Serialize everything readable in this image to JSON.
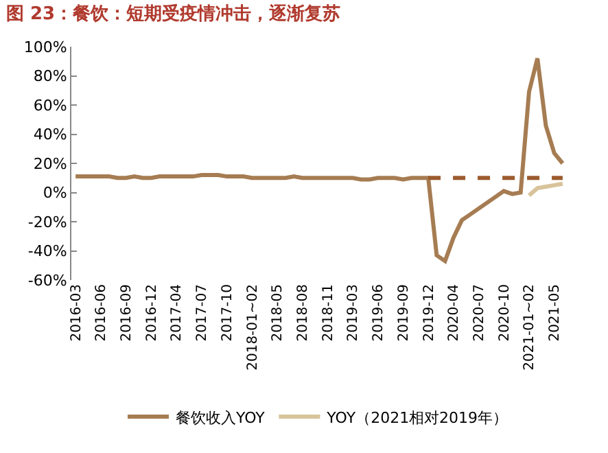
{
  "chart_data": {
    "type": "line",
    "title": "图 23：餐饮：短期受疫情冲击，逐渐复苏",
    "categories": [
      "2016-03",
      null,
      null,
      "2016-06",
      null,
      null,
      "2016-09",
      null,
      null,
      "2016-12",
      null,
      null,
      "2017-04",
      null,
      null,
      "2017-07",
      null,
      null,
      "2017-10",
      null,
      null,
      "2018-01~02",
      null,
      null,
      "2018-05",
      null,
      null,
      "2018-08",
      null,
      null,
      "2018-11",
      null,
      null,
      "2019-03",
      null,
      null,
      "2019-06",
      null,
      null,
      "2019-09",
      null,
      null,
      "2019-12",
      null,
      null,
      "2020-04",
      null,
      null,
      "2020-07",
      null,
      null,
      "2020-10",
      null,
      null,
      "2021-01~02",
      null,
      null,
      "2021-05",
      null
    ],
    "series": [
      {
        "name": "餐饮收入YOY",
        "color": "#a67c52",
        "values": [
          11,
          11,
          11,
          11,
          11,
          10,
          10,
          11,
          10,
          10,
          11,
          11,
          11,
          11,
          11,
          12,
          12,
          12,
          11,
          11,
          11,
          10,
          10,
          10,
          10,
          10,
          11,
          10,
          10,
          10,
          10,
          10,
          10,
          10,
          9,
          9,
          10,
          10,
          10,
          9,
          10,
          10,
          10,
          -43,
          -47,
          -31,
          -19,
          -15,
          -11,
          -7,
          -3,
          1,
          -1,
          0,
          69,
          92,
          46,
          27,
          20
        ]
      },
      {
        "name": "YOY（2021相对2019年）",
        "color": "#d8c39a",
        "values": [
          null,
          null,
          null,
          null,
          null,
          null,
          null,
          null,
          null,
          null,
          null,
          null,
          null,
          null,
          null,
          null,
          null,
          null,
          null,
          null,
          null,
          null,
          null,
          null,
          null,
          null,
          null,
          null,
          null,
          null,
          null,
          null,
          null,
          null,
          null,
          null,
          null,
          null,
          null,
          null,
          null,
          null,
          null,
          null,
          null,
          null,
          null,
          null,
          null,
          null,
          null,
          null,
          null,
          null,
          -2,
          3,
          4,
          5,
          6
        ]
      },
      {
        "color": "#9c5b2e",
        "line_style": "dashed",
        "values": [
          null,
          null,
          null,
          null,
          null,
          null,
          null,
          null,
          null,
          null,
          null,
          null,
          null,
          null,
          null,
          null,
          null,
          null,
          null,
          null,
          null,
          null,
          null,
          null,
          null,
          null,
          null,
          null,
          null,
          null,
          null,
          null,
          null,
          null,
          null,
          null,
          null,
          null,
          null,
          null,
          null,
          null,
          10,
          10,
          10,
          10,
          10,
          10,
          10,
          10,
          10,
          10,
          10,
          10,
          10,
          10,
          10,
          10,
          10
        ]
      }
    ],
    "ylim": [
      -60,
      100
    ],
    "yticks": [
      {
        "value": -60,
        "label": "-60%"
      },
      {
        "value": -40,
        "label": "-40%"
      },
      {
        "value": -20,
        "label": "-20%"
      },
      {
        "value": 0,
        "label": "0%"
      },
      {
        "value": 20,
        "label": "20%"
      },
      {
        "value": 40,
        "label": "40%"
      },
      {
        "value": 60,
        "label": "60%"
      },
      {
        "value": 80,
        "label": "80%"
      },
      {
        "value": 100,
        "label": "100%"
      }
    ],
    "grid": false,
    "legend": "bottom",
    "marker": "none",
    "line_style": "solid"
  }
}
